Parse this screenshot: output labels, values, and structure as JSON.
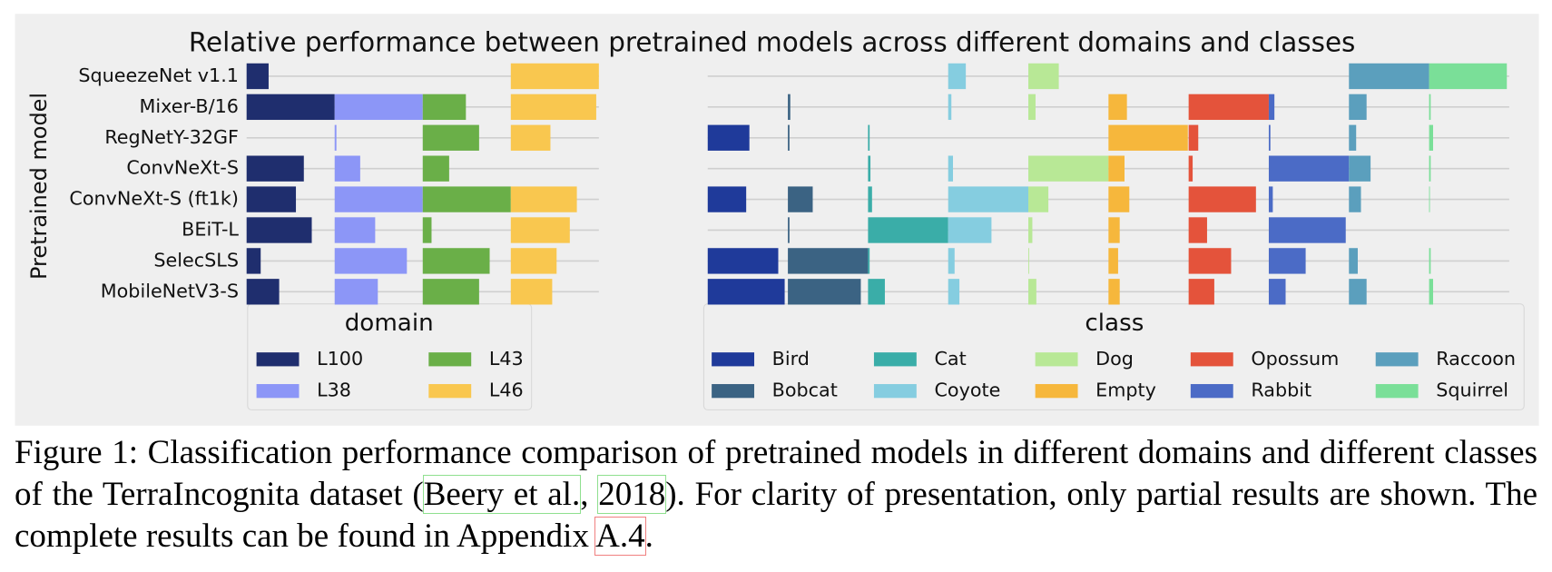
{
  "chart_data": {
    "type": "bar",
    "title": "Relative performance between pretrained models across different domains and classes",
    "ylabel": "Pretrained model",
    "categories": [
      "SqueezeNet v1.1",
      "Mixer-B/16",
      "RegNetY-32GF",
      "ConvNeXt-S",
      "ConvNeXt-S (ft1k)",
      "BEiT-L",
      "SelecSLS",
      "MobileNetV3-S"
    ],
    "grid": true,
    "panels": [
      {
        "legend_title": "domain",
        "series": [
          {
            "name": "L100",
            "color": "#1f2e6e",
            "values": [
              0.25,
              1.0,
              0,
              0.65,
              0.56,
              0.74,
              0.16,
              0.37
            ]
          },
          {
            "name": "L38",
            "color": "#8c96f7",
            "values": [
              0,
              1.0,
              0.02,
              0.29,
              1.0,
              0.46,
              0.82,
              0.49
            ]
          },
          {
            "name": "L43",
            "color": "#6aaf48",
            "values": [
              0,
              0.49,
              0.64,
              0.3,
              1.0,
              0.1,
              0.76,
              0.64
            ]
          },
          {
            "name": "L46",
            "color": "#f9c74f",
            "values": [
              1.0,
              0.97,
              0.45,
              0,
              0.75,
              0.67,
              0.52,
              0.47
            ]
          }
        ]
      },
      {
        "legend_title": "class",
        "series": [
          {
            "name": "Bird",
            "color": "#1f3a9a",
            "values": [
              0,
              0,
              0.52,
              0,
              0.48,
              0,
              0.88,
              0.96
            ]
          },
          {
            "name": "Bobcat",
            "color": "#3b6383",
            "values": [
              0,
              0.03,
              0.02,
              0,
              0.31,
              0.02,
              1.0,
              0.91
            ]
          },
          {
            "name": "Cat",
            "color": "#3aada8",
            "values": [
              0,
              0,
              0.02,
              0.03,
              0.05,
              1.0,
              0.02,
              0.21
            ]
          },
          {
            "name": "Coyote",
            "color": "#85cde0",
            "values": [
              0.22,
              0.04,
              0,
              0.06,
              1.0,
              0.54,
              0.08,
              0.14
            ]
          },
          {
            "name": "Dog",
            "color": "#b8e896",
            "values": [
              0.38,
              0.09,
              0,
              1.0,
              0.25,
              0.05,
              0.01,
              0.1
            ]
          },
          {
            "name": "Empty",
            "color": "#f6b73c",
            "values": [
              0,
              0.23,
              0.99,
              0.2,
              0.26,
              0.14,
              0.12,
              0.14
            ]
          },
          {
            "name": "Opossum",
            "color": "#e4533b",
            "values": [
              0,
              1.0,
              0.12,
              0.05,
              0.84,
              0.23,
              0.53,
              0.32
            ]
          },
          {
            "name": "Rabbit",
            "color": "#4b6bc6",
            "values": [
              0,
              0.07,
              0.02,
              1.0,
              0.05,
              0.96,
              0.46,
              0.21
            ]
          },
          {
            "name": "Raccoon",
            "color": "#5b9fbd",
            "values": [
              1.0,
              0.22,
              0.09,
              0.27,
              0.15,
              0,
              0.11,
              0.22
            ]
          },
          {
            "name": "Squirrel",
            "color": "#7adf98",
            "values": [
              0.97,
              0.02,
              0.05,
              0.02,
              0.01,
              0,
              0.02,
              0.05
            ]
          }
        ]
      }
    ]
  },
  "caption": [
    "Figure 1: Classification performance comparison of pretrained models in different domains and different classes of the TerraIncognita dataset (",
    "Beery et al.",
    ", ",
    "2018",
    "). For clarity of presentation, only partial results are shown. The complete results can be found in Appendix ",
    "A.4",
    "."
  ]
}
